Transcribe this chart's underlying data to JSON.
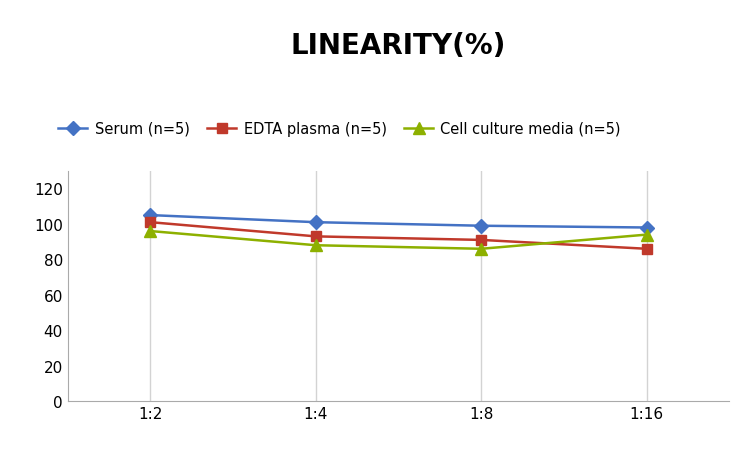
{
  "title": "LINEARITY(%)",
  "x_labels": [
    "1:2",
    "1:4",
    "1:8",
    "1:16"
  ],
  "x_positions": [
    0,
    1,
    2,
    3
  ],
  "series": [
    {
      "label": "Serum (n=5)",
      "values": [
        105,
        101,
        99,
        98
      ],
      "color": "#4472C4",
      "marker": "D",
      "markersize": 7,
      "linewidth": 1.8
    },
    {
      "label": "EDTA plasma (n=5)",
      "values": [
        101,
        93,
        91,
        86
      ],
      "color": "#C0392B",
      "marker": "s",
      "markersize": 7,
      "linewidth": 1.8
    },
    {
      "label": "Cell culture media (n=5)",
      "values": [
        96,
        88,
        86,
        94
      ],
      "color": "#8DB000",
      "marker": "^",
      "markersize": 8,
      "linewidth": 1.8
    }
  ],
  "ylim": [
    0,
    130
  ],
  "yticks": [
    0,
    20,
    40,
    60,
    80,
    100,
    120
  ],
  "grid_color": "#D3D3D3",
  "background_color": "#FFFFFF",
  "title_fontsize": 20,
  "legend_fontsize": 10.5,
  "tick_fontsize": 11
}
